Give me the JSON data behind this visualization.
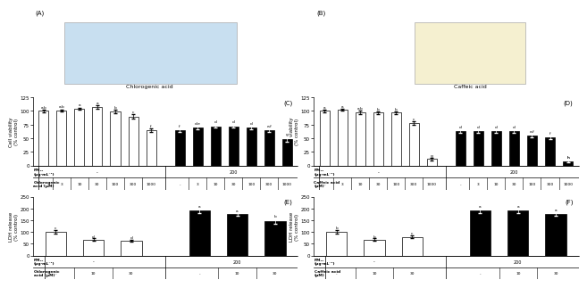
{
  "panel_C": {
    "title": "(C)",
    "ylabel": "Cell viability\n(% control)",
    "ylim": [
      0,
      125
    ],
    "yticks": [
      0,
      25,
      50,
      75,
      100,
      125
    ],
    "white_vals": [
      100,
      101,
      104,
      107,
      99,
      90,
      65
    ],
    "white_errs": [
      2,
      2,
      2,
      3,
      3,
      4,
      3
    ],
    "white_lbls": [
      "a,b",
      "a,b",
      "a",
      "a",
      "b",
      "c",
      "f"
    ],
    "black_vals": [
      65,
      70,
      72,
      72,
      70,
      65,
      48
    ],
    "black_errs": [
      3,
      3,
      3,
      3,
      3,
      3,
      4
    ],
    "black_lbls": [
      "f",
      "d,e",
      "d",
      "d",
      "d",
      "e,f",
      "g"
    ],
    "pm10_label": "PM₁₀\n(μg·mL⁻¹)",
    "acid_label": "Chlorogenic\nacid (μM)",
    "conc_labels_white": [
      "-",
      "3",
      "10",
      "30",
      "100",
      "300",
      "1000"
    ],
    "conc_labels_black": [
      "-",
      "3",
      "10",
      "30",
      "100",
      "300",
      "1000"
    ]
  },
  "panel_D": {
    "title": "(D)",
    "ylabel": "Cell viability\n(% control)",
    "ylim": [
      0,
      125
    ],
    "yticks": [
      0,
      25,
      50,
      75,
      100,
      125
    ],
    "white_vals": [
      100,
      102,
      97,
      97,
      97,
      78,
      12
    ],
    "white_errs": [
      2,
      2,
      3,
      2,
      2,
      3,
      2
    ],
    "white_lbls": [
      "a",
      "a",
      "a,b",
      "b",
      "b",
      "c",
      "g"
    ],
    "black_vals": [
      63,
      63,
      63,
      63,
      55,
      52,
      8
    ],
    "black_errs": [
      3,
      3,
      3,
      3,
      3,
      3,
      2
    ],
    "black_lbls": [
      "d",
      "d",
      "d",
      "d",
      "e,f",
      "f",
      "h"
    ],
    "pm10_label": "PM₁₀\n(μg·mL⁻¹)",
    "acid_label": "Caffeic acid\n(μM)",
    "conc_labels_white": [
      "-",
      "3",
      "10",
      "30",
      "100",
      "300",
      "1000"
    ],
    "conc_labels_black": [
      "-",
      "3",
      "10",
      "30",
      "100",
      "300",
      "1000"
    ]
  },
  "panel_E": {
    "title": "(E)",
    "ylabel": "LDH release\n(% control)",
    "ylim": [
      0,
      250
    ],
    "yticks": [
      0,
      50,
      100,
      150,
      200,
      250
    ],
    "white_vals": [
      100,
      68,
      63
    ],
    "white_errs": [
      8,
      5,
      5
    ],
    "white_lbls": [
      "c",
      "d",
      "d"
    ],
    "black_vals": [
      192,
      175,
      148
    ],
    "black_errs": [
      10,
      7,
      12
    ],
    "black_lbls": [
      "a",
      "a",
      "b"
    ],
    "pm10_label": "PM₁₀\n(μg·mL⁻¹)",
    "acid_label": "Chlorogenic\nacid (μM)",
    "conc_labels_white": [
      "-",
      "10",
      "30"
    ],
    "conc_labels_black": [
      "-",
      "10",
      "30"
    ]
  },
  "panel_F": {
    "title": "(F)",
    "ylabel": "LDH release\n(% control)",
    "ylim": [
      0,
      250
    ],
    "yticks": [
      0,
      50,
      100,
      150,
      200,
      250
    ],
    "white_vals": [
      100,
      68,
      80
    ],
    "white_errs": [
      8,
      5,
      6
    ],
    "white_lbls": [
      "b",
      "b",
      "c"
    ],
    "black_vals": [
      192,
      192,
      178
    ],
    "black_errs": [
      10,
      10,
      8
    ],
    "black_lbls": [
      "a",
      "a",
      "a"
    ],
    "pm10_label": "PM₁₀\n(μg·mL⁻¹)",
    "acid_label": "Caffeic acid\n(μM)",
    "conc_labels_white": [
      "-",
      "10",
      "30"
    ],
    "conc_labels_black": [
      "-",
      "10",
      "30"
    ]
  },
  "chlorogenic_bg": "#c8dff0",
  "caffeic_bg": "#f5f0d0",
  "bar_white_color": "white",
  "bar_black_color": "black",
  "bar_edge_color": "black",
  "figure_bg": "white"
}
